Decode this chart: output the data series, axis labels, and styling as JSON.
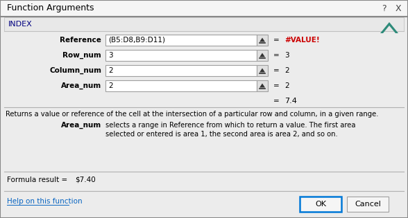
{
  "title": "Function Arguments",
  "function_name": "INDEX",
  "fields": [
    {
      "label": "Reference",
      "value": "(B5:D8,B9:D11)",
      "result": "#VALUE!",
      "result_color": "#CC0000"
    },
    {
      "label": "Row_num",
      "value": "3",
      "result": "3",
      "result_color": "#000000"
    },
    {
      "label": "Column_num",
      "value": "2",
      "result": "2",
      "result_color": "#000000"
    },
    {
      "label": "Area_num",
      "value": "2",
      "result": "2",
      "result_color": "#000000"
    }
  ],
  "final_result": "7.4",
  "description": "Returns a value or reference of the cell at the intersection of a particular row and column, in a given range.",
  "highlight_label": "Area_num",
  "highlight_desc_line1": "selects a range in Reference from which to return a value. The first area",
  "highlight_desc_line2": "selected or entered is area 1, the second area is area 2, and so on.",
  "formula_result_label": "Formula result =",
  "formula_result_value": "$7.40",
  "help_link": "Help on this function",
  "bg_color": "#ECECEC",
  "input_bg": "#FFFFFF",
  "ok_border_color": "#0078D7",
  "logo_color": "#2E8B7A",
  "question_mark": "?",
  "close_x": "X",
  "title_color": "#000080",
  "index_color": "#000080"
}
